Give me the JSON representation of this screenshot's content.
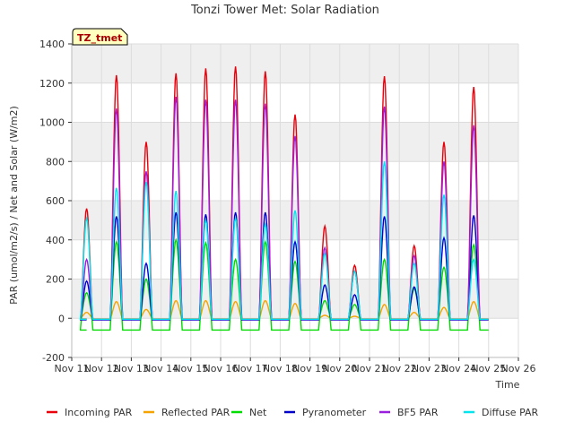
{
  "chart_data": {
    "type": "line",
    "title": "Tonzi Tower Met: Solar Radiation",
    "xlabel": "Time",
    "ylabel": "PAR (umol/m2/s) / Net and Solar (W/m2)",
    "xlim": [
      11,
      26
    ],
    "ylim": [
      -200,
      1400
    ],
    "x_ticks": [
      11,
      12,
      13,
      14,
      15,
      16,
      17,
      18,
      19,
      20,
      21,
      22,
      23,
      24,
      25,
      26
    ],
    "x_tick_labels": [
      "Nov 11",
      "Nov 12",
      "Nov 13",
      "Nov 14",
      "Nov 15",
      "Nov 16",
      "Nov 17",
      "Nov 18",
      "Nov 19",
      "Nov 20",
      "Nov 21",
      "Nov 22",
      "Nov 23",
      "Nov 24",
      "Nov 25",
      "Nov 26"
    ],
    "y_ticks": [
      -200,
      0,
      200,
      400,
      600,
      800,
      1000,
      1200,
      1400
    ],
    "y_tick_labels": [
      "-200",
      "0",
      "200",
      "400",
      "600",
      "800",
      "1000",
      "1200",
      "1400"
    ],
    "grid": true,
    "legend_position": "bottom",
    "site_badge": "TZ_tmet",
    "day_start": 11.5,
    "days": [
      12,
      13,
      14,
      15,
      16,
      17,
      18,
      19,
      20,
      21,
      22,
      23,
      24,
      25
    ],
    "day_fraction_start": 0.29,
    "day_fraction_end": 0.71,
    "series": [
      {
        "name": "Incoming PAR",
        "color": "#e8000b",
        "night": -5,
        "peaks": [
          560,
          1240,
          900,
          1250,
          1275,
          1285,
          1260,
          1040,
          470,
          270,
          1235,
          370,
          900,
          1180
        ]
      },
      {
        "name": "Reflected PAR",
        "color": "#f5a300",
        "night": -3,
        "peaks": [
          30,
          85,
          45,
          90,
          90,
          85,
          90,
          75,
          15,
          10,
          70,
          30,
          55,
          85
        ]
      },
      {
        "name": "Net",
        "color": "#00dc00",
        "night": -60,
        "peaks": [
          130,
          390,
          200,
          400,
          385,
          300,
          390,
          290,
          90,
          70,
          300,
          150,
          260,
          375
        ]
      },
      {
        "name": "Pyranometer",
        "color": "#0000cc",
        "night": -8,
        "peaks": [
          190,
          520,
          280,
          540,
          530,
          540,
          540,
          390,
          170,
          120,
          520,
          160,
          410,
          525
        ]
      },
      {
        "name": "BF5 PAR",
        "color": "#9b1ee0",
        "night": -5,
        "peaks": [
          300,
          1070,
          750,
          1130,
          1115,
          1115,
          1095,
          930,
          360,
          240,
          1080,
          320,
          800,
          985
        ]
      },
      {
        "name": "Diffuse PAR",
        "color": "#00e5ee",
        "night": -5,
        "peaks": [
          510,
          665,
          695,
          650,
          500,
          510,
          480,
          550,
          330,
          240,
          800,
          280,
          630,
          300
        ]
      }
    ]
  }
}
